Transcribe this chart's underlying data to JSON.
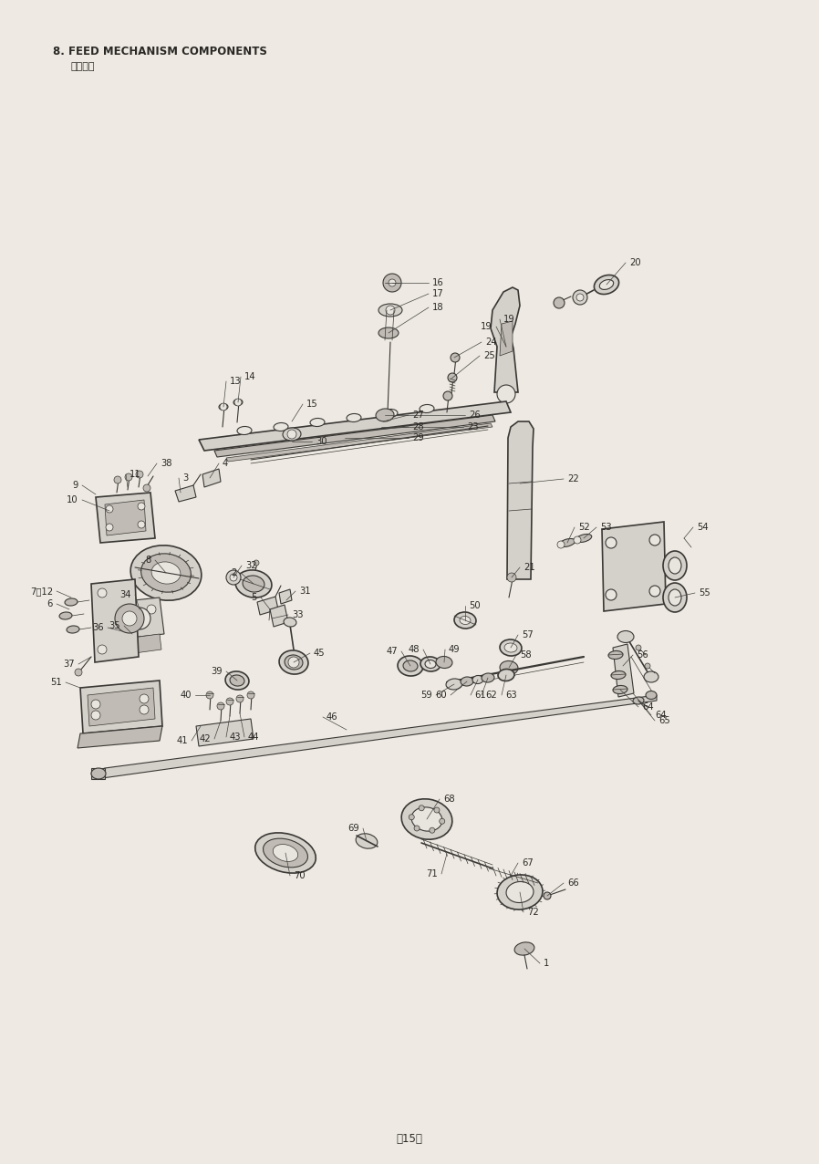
{
  "title": "8. FEED MECHANISM COMPONENTS",
  "subtitle": "送り関係",
  "page_number": "−15−",
  "bg": "#eeeae3",
  "lc": "#3a3835",
  "tc": "#2a2825",
  "title_fs": 8.5,
  "sub_fs": 8.0,
  "page_fs": 8.5,
  "lbl_fs": 7.2
}
